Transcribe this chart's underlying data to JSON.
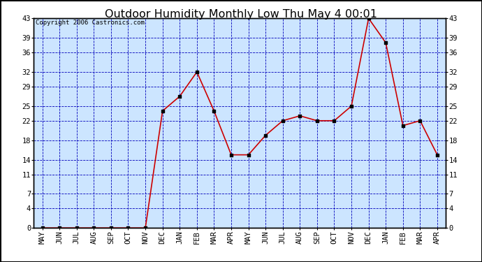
{
  "title": "Outdoor Humidity Monthly Low Thu May 4 00:01",
  "copyright": "Copyright 2006 Castronics.com",
  "x_labels": [
    "MAY",
    "JUN",
    "JUL",
    "AUG",
    "SEP",
    "OCT",
    "NOV",
    "DEC",
    "JAN",
    "FEB",
    "MAR",
    "APR",
    "MAY",
    "JUN",
    "JUL",
    "AUG",
    "SEP",
    "OCT",
    "NOV",
    "DEC",
    "JAN",
    "FEB",
    "MAR",
    "APR"
  ],
  "y_values": [
    0,
    0,
    0,
    0,
    0,
    0,
    0,
    24,
    27,
    32,
    24,
    15,
    15,
    19,
    22,
    23,
    22,
    22,
    25,
    43,
    38,
    21,
    22,
    15
  ],
  "y_ticks": [
    0,
    4,
    7,
    11,
    14,
    18,
    22,
    25,
    29,
    32,
    36,
    39,
    43
  ],
  "y_min": 0,
  "y_max": 43,
  "line_color": "#cc0000",
  "marker_color": "#000000",
  "background_white": "#ffffff",
  "plot_bg_color": "#cce5ff",
  "grid_color": "#0000bb",
  "border_color": "#000000",
  "title_color": "#000000",
  "copyright_color": "#000000",
  "title_fontsize": 11.5,
  "copyright_fontsize": 6.5,
  "tick_fontsize": 7.5
}
